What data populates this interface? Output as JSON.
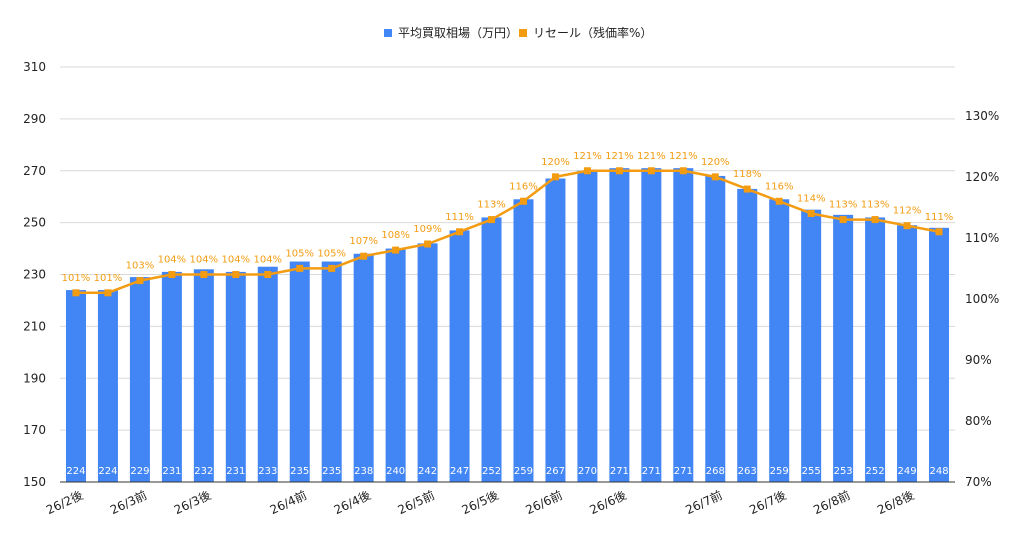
{
  "chart_data": {
    "type": "bar",
    "categories": [
      "26/2後",
      "26/3前",
      "26/3前",
      "26/3前",
      "26/3後",
      "26/3後",
      "26/3後",
      "26/4前",
      "26/4前",
      "26/4後",
      "26/4後",
      "26/5前",
      "26/5前",
      "26/5後",
      "26/5後",
      "26/6前",
      "26/6前",
      "26/6後",
      "26/6後",
      "26/7前",
      "26/7前",
      "26/7後",
      "26/7後",
      "26/8前",
      "26/8前",
      "26/8後",
      "26/8後",
      "26/8後"
    ],
    "x_tick_labels": [
      "26/2後",
      "26/3前",
      "26/3後",
      "26/4前",
      "26/4後",
      "26/5前",
      "26/5後",
      "26/6前",
      "26/6後",
      "26/7前",
      "26/7後",
      "26/8前",
      "26/8後"
    ],
    "series": [
      {
        "name": "平均買取相場（万円）",
        "type": "bar",
        "axis": "left",
        "color": "#4285f4",
        "values": [
          224,
          224,
          229,
          231,
          232,
          231,
          233,
          235,
          235,
          238,
          240,
          242,
          247,
          252,
          259,
          267,
          270,
          271,
          271,
          271,
          268,
          263,
          259,
          255,
          253,
          252,
          249,
          248
        ],
        "labels": [
          "224",
          "224",
          "229",
          "231",
          "232",
          "231",
          "233",
          "235",
          "235",
          "238",
          "240",
          "242",
          "247",
          "252",
          "259",
          "267",
          "270",
          "271",
          "271",
          "271",
          "268",
          "263",
          "259",
          "255",
          "253",
          "252",
          "249",
          "248"
        ]
      },
      {
        "name": "リセール（残価率%）",
        "type": "line",
        "axis": "right",
        "color": "#f39c12",
        "values": [
          101,
          101,
          103,
          104,
          104,
          104,
          104,
          105,
          105,
          107,
          108,
          109,
          111,
          113,
          116,
          120,
          121,
          121,
          121,
          121,
          120,
          118,
          116,
          114,
          113,
          113,
          112,
          111
        ],
        "labels": [
          "101%",
          "101%",
          "103%",
          "104%",
          "104%",
          "104%",
          "104%",
          "105%",
          "105%",
          "107%",
          "108%",
          "109%",
          "111%",
          "113%",
          "116%",
          "120%",
          "121%",
          "121%",
          "121%",
          "121%",
          "120%",
          "118%",
          "116%",
          "114%",
          "113%",
          "113%",
          "112%",
          "111%"
        ]
      }
    ],
    "y_left": {
      "min": 150,
      "max": 310,
      "ticks": [
        "150",
        "170",
        "190",
        "210",
        "230",
        "250",
        "270",
        "290",
        "310"
      ]
    },
    "y_right": {
      "min": 70,
      "max": 138,
      "ticks": [
        "70%",
        "80%",
        "90%",
        "100%",
        "110%",
        "120%",
        "130%"
      ]
    },
    "legend_position": "top",
    "grid": true
  }
}
